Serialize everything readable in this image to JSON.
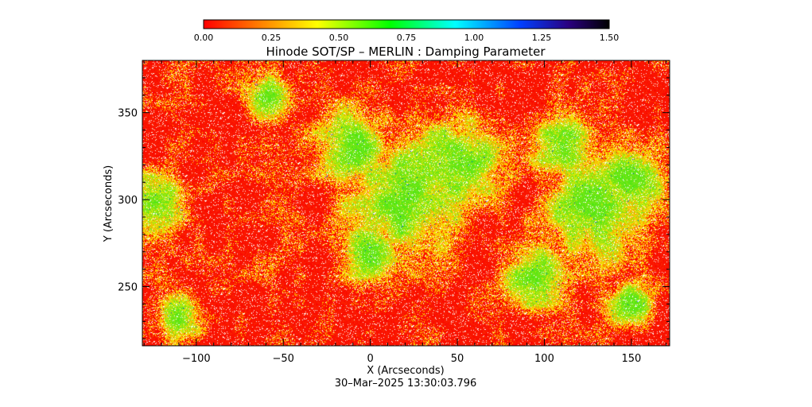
{
  "chart_data": {
    "type": "heatmap",
    "title": "Hinode SOT/SP – MERLIN : Damping Parameter",
    "xlabel": "X (Arcseconds)",
    "ylabel": "Y (Arcseconds)",
    "footer": "30–Mar–2025 13:30:03.796",
    "xlim": [
      -131,
      172
    ],
    "ylim": [
      216,
      380
    ],
    "x_ticks": [
      -100,
      -50,
      0,
      50,
      100,
      150
    ],
    "y_ticks": [
      250,
      300,
      350
    ],
    "colorbar": {
      "range": [
        0,
        1.5
      ],
      "ticks": [
        "0.00",
        "0.25",
        "0.50",
        "0.75",
        "1.00",
        "1.25",
        "1.50"
      ],
      "colors": [
        "#ff0000",
        "#ff8000",
        "#ffff00",
        "#00ff00",
        "#00ffff",
        "#0040ff",
        "#0000a0",
        "#000000"
      ]
    },
    "regions_green": [
      {
        "x": 20,
        "y": 300,
        "r": 40
      },
      {
        "x": -10,
        "y": 330,
        "r": 25
      },
      {
        "x": 50,
        "y": 320,
        "r": 30
      },
      {
        "x": 130,
        "y": 295,
        "r": 35
      },
      {
        "x": 150,
        "y": 310,
        "r": 25
      },
      {
        "x": -125,
        "y": 300,
        "r": 20
      },
      {
        "x": 95,
        "y": 255,
        "r": 20
      },
      {
        "x": 110,
        "y": 330,
        "r": 20
      },
      {
        "x": -60,
        "y": 360,
        "r": 15
      },
      {
        "x": -110,
        "y": 230,
        "r": 15
      },
      {
        "x": 150,
        "y": 240,
        "r": 15
      },
      {
        "x": 0,
        "y": 270,
        "r": 20
      }
    ]
  }
}
